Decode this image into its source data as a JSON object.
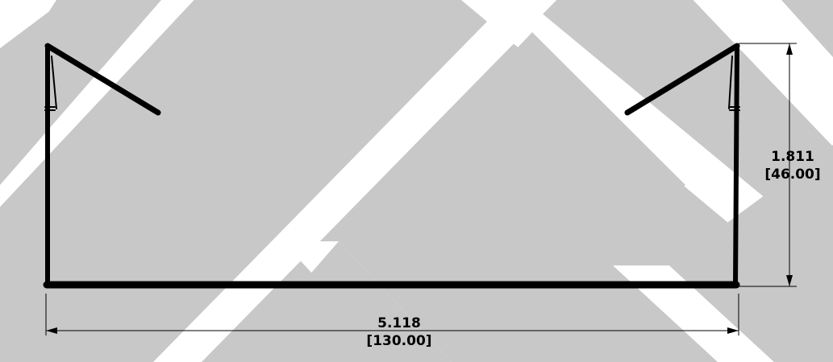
{
  "colors": {
    "background": "#ffffff",
    "watermark": "#c8c8c8",
    "profile": "#000000",
    "dimension_line": "#000000"
  },
  "dimensions": {
    "height": {
      "imperial": "1.811",
      "metric": "[46.00]"
    },
    "width": {
      "imperial": "5.118",
      "metric": "[130.00]"
    }
  }
}
